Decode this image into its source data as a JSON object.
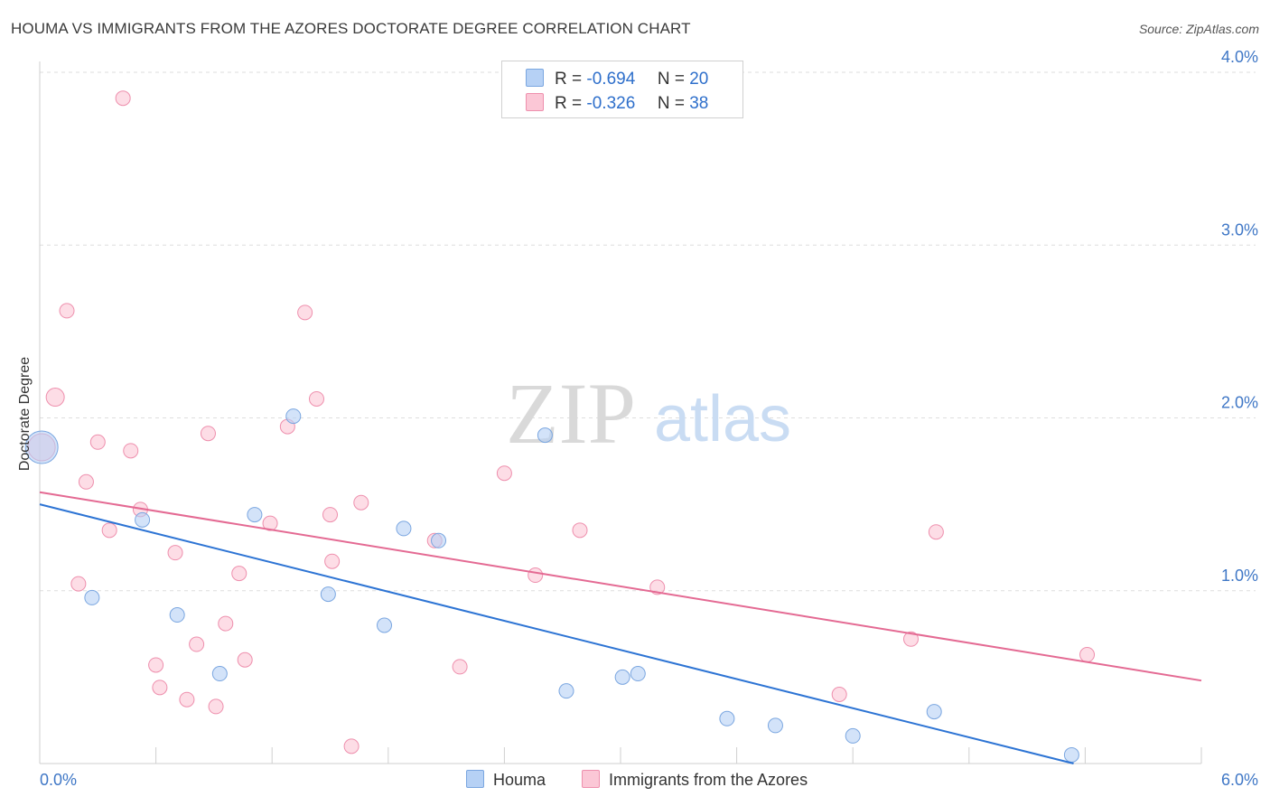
{
  "header": {
    "title": "HOUMA VS IMMIGRANTS FROM THE AZORES DOCTORATE DEGREE CORRELATION CHART",
    "source": "Source: ZipAtlas.com"
  },
  "watermark": {
    "zip": "ZIP",
    "atlas": "atlas"
  },
  "legend": {
    "r_label": "R =",
    "n_label": "N =",
    "rows": [
      {
        "r": "-0.694",
        "n": "20",
        "color": "#b6d1f5",
        "border": "#7aa6e0"
      },
      {
        "r": "-0.326",
        "n": "38",
        "color": "#fbc7d6",
        "border": "#ee8fad"
      }
    ]
  },
  "chart_data": {
    "type": "scatter",
    "title": "HOUMA VS IMMIGRANTS FROM THE AZORES DOCTORATE DEGREE CORRELATION CHART",
    "xlabel": "",
    "ylabel": "Doctorate Degree",
    "xlim": [
      0,
      6
    ],
    "ylim": [
      0,
      4
    ],
    "x_tick_labels": [
      "0.0%",
      "6.0%"
    ],
    "y_ticks": [
      1,
      2,
      3,
      4
    ],
    "y_tick_labels": [
      "1.0%",
      "2.0%",
      "3.0%",
      "4.0%"
    ],
    "grid": true,
    "legend_position": "bottom",
    "series": [
      {
        "name": "Houma",
        "color": "#b6d1f5",
        "stroke": "#7aa6e0",
        "line_color": "#2d74d4",
        "trend": [
          [
            0,
            1.5
          ],
          [
            5.34,
            0
          ]
        ],
        "points": [
          [
            0.01,
            1.83,
            18
          ],
          [
            0.27,
            0.96,
            8
          ],
          [
            0.53,
            1.41,
            8
          ],
          [
            0.71,
            0.86,
            8
          ],
          [
            0.93,
            0.52,
            8
          ],
          [
            1.11,
            1.44,
            8
          ],
          [
            1.31,
            2.01,
            8
          ],
          [
            1.49,
            0.98,
            8
          ],
          [
            1.78,
            0.8,
            8
          ],
          [
            1.88,
            1.36,
            8
          ],
          [
            2.06,
            1.29,
            8
          ],
          [
            2.61,
            1.9,
            8
          ],
          [
            2.72,
            0.42,
            8
          ],
          [
            3.01,
            0.5,
            8
          ],
          [
            3.09,
            0.52,
            8
          ],
          [
            3.55,
            0.26,
            8
          ],
          [
            3.8,
            0.22,
            8
          ],
          [
            4.2,
            0.16,
            8
          ],
          [
            4.62,
            0.3,
            8
          ],
          [
            5.33,
            0.05,
            8
          ]
        ]
      },
      {
        "name": "Immigrants from the Azores",
        "color": "#fbc7d6",
        "stroke": "#ee8fad",
        "line_color": "#e46a93",
        "trend": [
          [
            0,
            1.57
          ],
          [
            6,
            0.48
          ]
        ],
        "points": [
          [
            0.01,
            1.83,
            15
          ],
          [
            0.08,
            2.12,
            10
          ],
          [
            0.14,
            2.62,
            8
          ],
          [
            0.2,
            1.04,
            8
          ],
          [
            0.24,
            1.63,
            8
          ],
          [
            0.3,
            1.86,
            8
          ],
          [
            0.36,
            1.35,
            8
          ],
          [
            0.43,
            3.85,
            8
          ],
          [
            0.47,
            1.81,
            8
          ],
          [
            0.52,
            1.47,
            8
          ],
          [
            0.6,
            0.57,
            8
          ],
          [
            0.62,
            0.44,
            8
          ],
          [
            0.7,
            1.22,
            8
          ],
          [
            0.76,
            0.37,
            8
          ],
          [
            0.81,
            0.69,
            8
          ],
          [
            0.87,
            1.91,
            8
          ],
          [
            0.91,
            0.33,
            8
          ],
          [
            0.96,
            0.81,
            8
          ],
          [
            1.03,
            1.1,
            8
          ],
          [
            1.06,
            0.6,
            8
          ],
          [
            1.19,
            1.39,
            8
          ],
          [
            1.28,
            1.95,
            8
          ],
          [
            1.37,
            2.61,
            8
          ],
          [
            1.43,
            2.11,
            8
          ],
          [
            1.5,
            1.44,
            8
          ],
          [
            1.51,
            1.17,
            8
          ],
          [
            1.61,
            0.1,
            8
          ],
          [
            1.66,
            1.51,
            8
          ],
          [
            2.04,
            1.29,
            8
          ],
          [
            2.17,
            0.56,
            8
          ],
          [
            2.4,
            1.68,
            8
          ],
          [
            2.56,
            1.09,
            8
          ],
          [
            2.79,
            1.35,
            8
          ],
          [
            3.19,
            1.02,
            8
          ],
          [
            4.13,
            0.4,
            8
          ],
          [
            4.5,
            0.72,
            8
          ],
          [
            4.63,
            1.34,
            8
          ],
          [
            5.41,
            0.63,
            8
          ]
        ]
      }
    ]
  }
}
